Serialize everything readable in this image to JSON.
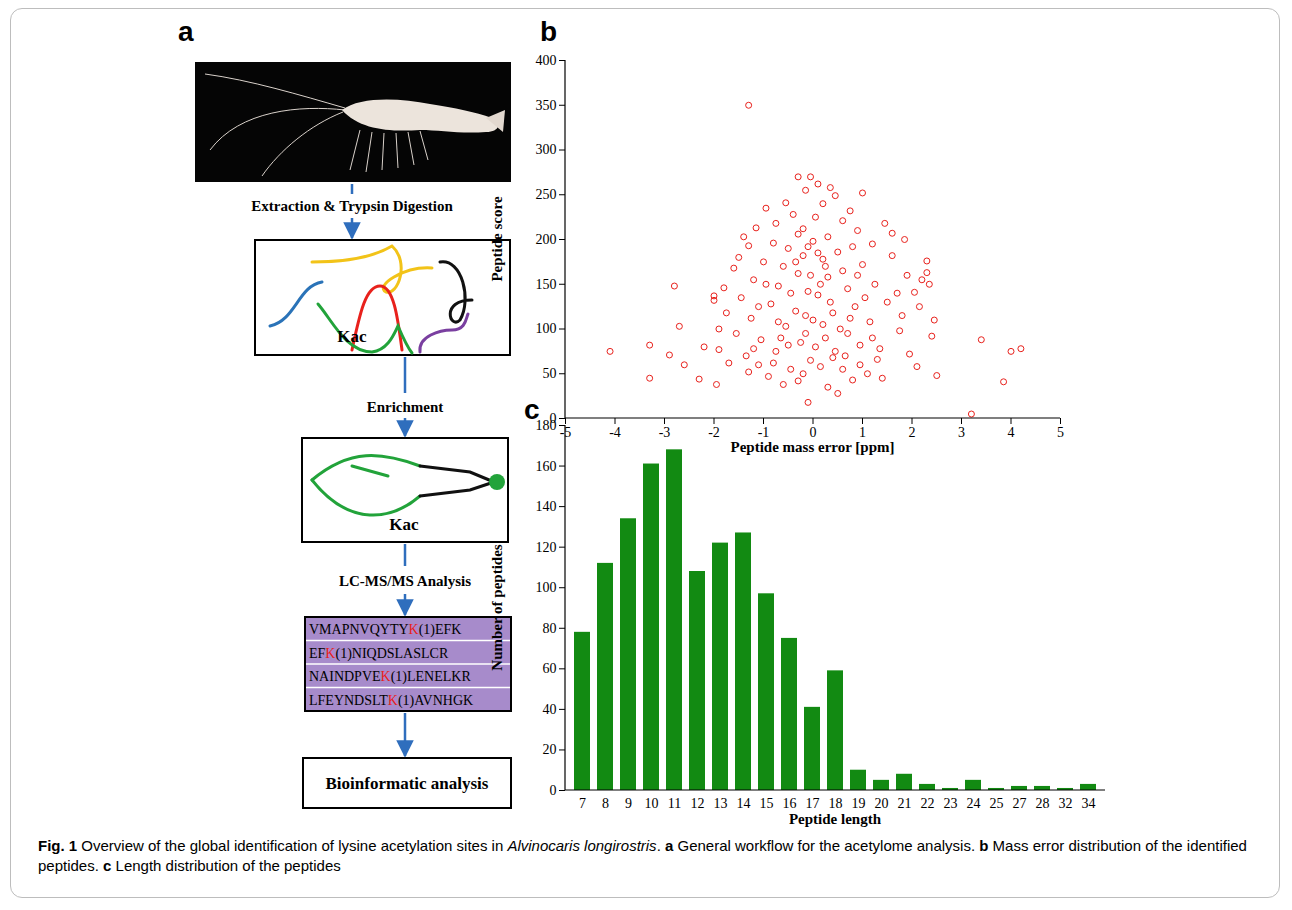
{
  "diagram": {
    "panel_label": "a",
    "steps": [
      "Extraction & Trypsin Digestion",
      "Enrichment",
      "LC-MS/MS Analysis"
    ],
    "box_labels": [
      "Kac",
      "Kac"
    ],
    "sequences": [
      "VMAPNVQYTYK(1)EFK",
      "EFK(1)NIQDSLASLCR",
      "NAINDPVEK(1)LENELKR",
      "LFEYNDSLTK(1)AVNHGK"
    ],
    "final_step": "Bioinformatic analysis"
  },
  "chart_data": [
    {
      "type": "scatter",
      "panel_label": "b",
      "x_label": "Peptide mass error [ppm]",
      "y_label": "Peptide score",
      "x": [
        -1.3,
        3.2,
        -4.1,
        4.2,
        4.0,
        3.85,
        3.4,
        -3.3,
        -3.3,
        -2.8,
        -2.7,
        -2.9,
        -2.6,
        -2.3,
        -2.0,
        -2.0,
        -1.9,
        -1.95,
        2.5,
        2.45,
        2.3,
        2.3,
        2.35,
        2.2,
        -0.1,
        -0.3,
        -0.05,
        1.0,
        0.35,
        0.1,
        -0.15,
        0.45,
        -0.55,
        0.75,
        -0.95,
        0.2,
        -1.15,
        1.45,
        1.6,
        -1.4,
        -1.3,
        1.85,
        1.2,
        -0.75,
        0.6,
        -0.4,
        0.05,
        0.9,
        -0.2,
        1.9,
        -1.6,
        -1.8,
        2.05,
        -1.75,
        2.15,
        1.75,
        -1.55,
        -1.7,
        1.95,
        2.1,
        -2.2,
        2.4,
        -1.3,
        1.4,
        -0.6,
        0.5,
        0.3,
        -0.3,
        0.8,
        1.1,
        -0.9,
        -1.1,
        1.3,
        -0.45,
        0.15,
        0.65,
        -0.75,
        0.95,
        -1.05,
        0.25,
        -0.15,
        0.55,
        -0.55,
        1.15,
        -1.25,
        0,
        0.4,
        -0.35,
        0.85,
        -0.85,
        1.5,
        -1.45,
        0.1,
        -0.1,
        0.7,
        -0.7,
        1.25,
        -1.2,
        0.3,
        -0.3,
        0.6,
        -0.6,
        1.0,
        -1.0,
        0.2,
        -0.2,
        0.5,
        -0.5,
        0.8,
        -0.8,
        0,
        0.3,
        -0.3,
        1.6,
        -1.5,
        1.7,
        -1.9,
        1.8,
        0.05,
        -0.05,
        0.45,
        -0.25,
        0.7,
        -0.65,
        0.2,
        -0.15,
        0.35,
        -0.45,
        0.15,
        -0.05,
        0.25,
        -0.35,
        0.1,
        -0.1,
        0.9,
        -0.95,
        1.05,
        -1.1,
        1.2,
        -1.2,
        0.6,
        -0.2,
        0.95,
        -0.8,
        1.35,
        -1.35,
        0.4,
        -0.5,
        0.75,
        -0.7
      ],
      "values": [
        350,
        5,
        75,
        78,
        75,
        41,
        88,
        82,
        45,
        148,
        103,
        71,
        60,
        44,
        137,
        132,
        77,
        38,
        48,
        110,
        176,
        163,
        150,
        155,
        18,
        270,
        270,
        252,
        258,
        262,
        255,
        249,
        241,
        232,
        235,
        240,
        213,
        218,
        207,
        203,
        193,
        200,
        195,
        218,
        221,
        228,
        225,
        210,
        212,
        160,
        168,
        146,
        141,
        118,
        125,
        98,
        95,
        62,
        72,
        58,
        80,
        92,
        52,
        45,
        38,
        28,
        35,
        42,
        43,
        50,
        47,
        60,
        66,
        55,
        58,
        70,
        75,
        82,
        88,
        90,
        95,
        100,
        103,
        108,
        112,
        110,
        118,
        120,
        125,
        128,
        130,
        135,
        138,
        142,
        145,
        148,
        150,
        155,
        158,
        162,
        165,
        170,
        172,
        175,
        178,
        182,
        186,
        190,
        192,
        196,
        198,
        203,
        206,
        182,
        180,
        140,
        100,
        115,
        80,
        65,
        75,
        85,
        95,
        90,
        105,
        115,
        130,
        140,
        150,
        160,
        170,
        175,
        185,
        192,
        160,
        150,
        135,
        125,
        90,
        78,
        55,
        50,
        60,
        62,
        78,
        70,
        68,
        82,
        112,
        108
      ],
      "color": "#e8211c",
      "marker": "open circle",
      "xlim": [
        -5,
        5
      ],
      "xticks": [
        -5,
        -4,
        -3,
        -2,
        -1,
        0,
        1,
        2,
        3,
        4,
        5
      ],
      "ylim": [
        0,
        400
      ],
      "yticks": [
        0,
        50,
        100,
        150,
        200,
        250,
        300,
        350,
        400
      ]
    },
    {
      "type": "bar",
      "panel_label": "c",
      "x_label": "Peptide length",
      "y_label": "Number of peptides",
      "categories": [
        "7",
        "8",
        "9",
        "10",
        "11",
        "12",
        "13",
        "14",
        "15",
        "16",
        "17",
        "18",
        "19",
        "20",
        "21",
        "22",
        "23",
        "24",
        "25",
        "27",
        "28",
        "32",
        "34"
      ],
      "values": [
        78,
        112,
        134,
        161,
        168,
        108,
        122,
        127,
        97,
        75,
        41,
        59,
        10,
        5,
        8,
        3,
        1,
        5,
        1,
        2,
        2,
        1,
        3
      ],
      "color": "#128a12",
      "ylim": [
        0,
        180
      ],
      "yticks": [
        0,
        20,
        40,
        60,
        80,
        100,
        120,
        140,
        160,
        180
      ]
    }
  ],
  "caption": [
    {
      "text": "Fig. 1",
      "style": "bold"
    },
    {
      "text": " Overview of the global identification of lysine acetylation sites in ",
      "style": "normal"
    },
    {
      "text": "Alvinocaris longirostris",
      "style": "italic"
    },
    {
      "text": ". ",
      "style": "normal"
    },
    {
      "text": "a",
      "style": "bold"
    },
    {
      "text": " General workflow for the acetylome analysis. ",
      "style": "normal"
    },
    {
      "text": "b",
      "style": "bold"
    },
    {
      "text": " Mass error distribution of the identified peptides. ",
      "style": "normal"
    },
    {
      "text": "c",
      "style": "bold"
    },
    {
      "text": " Length distribution of the peptides",
      "style": "normal"
    }
  ]
}
